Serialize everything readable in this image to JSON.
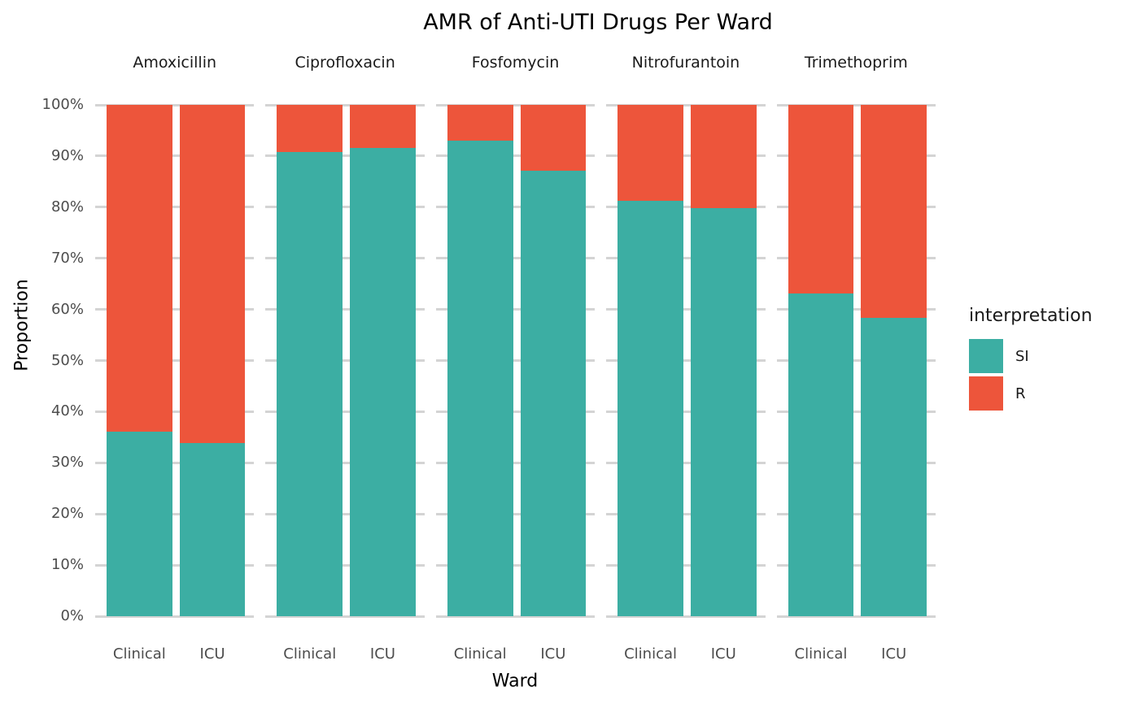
{
  "chart_data": {
    "type": "bar",
    "stacked": true,
    "title": "AMR of Anti-UTI Drugs Per Ward",
    "xlabel": "Ward",
    "ylabel": "Proportion",
    "ylim": [
      0,
      100
    ],
    "y_ticks": [
      0,
      10,
      20,
      30,
      40,
      50,
      60,
      70,
      80,
      90,
      100
    ],
    "y_tick_format": "percent",
    "grid": true,
    "legend_position": "right",
    "categories": [
      "Clinical",
      "ICU"
    ],
    "series": [
      {
        "name": "SI",
        "color": "#3CAEA3"
      },
      {
        "name": "R",
        "color": "#ED553B"
      }
    ],
    "facets": [
      {
        "label": "Amoxicillin",
        "bars": [
          {
            "category": "Clinical",
            "SI": 36.1,
            "R": 63.9
          },
          {
            "category": "ICU",
            "SI": 33.8,
            "R": 66.2
          }
        ]
      },
      {
        "label": "Ciprofloxacin",
        "bars": [
          {
            "category": "Clinical",
            "SI": 90.8,
            "R": 9.2
          },
          {
            "category": "ICU",
            "SI": 91.5,
            "R": 8.5
          }
        ]
      },
      {
        "label": "Fosfomycin",
        "bars": [
          {
            "category": "Clinical",
            "SI": 93.0,
            "R": 7.0
          },
          {
            "category": "ICU",
            "SI": 87.2,
            "R": 12.8
          }
        ]
      },
      {
        "label": "Nitrofurantoin",
        "bars": [
          {
            "category": "Clinical",
            "SI": 81.2,
            "R": 18.8
          },
          {
            "category": "ICU",
            "SI": 79.8,
            "R": 20.2
          }
        ]
      },
      {
        "label": "Trimethoprim",
        "bars": [
          {
            "category": "Clinical",
            "SI": 63.1,
            "R": 36.9
          },
          {
            "category": "ICU",
            "SI": 58.4,
            "R": 41.6
          }
        ]
      }
    ]
  },
  "legend": {
    "title": "interpretation",
    "items": [
      {
        "label": "SI",
        "color": "#3CAEA3"
      },
      {
        "label": "R",
        "color": "#ED553B"
      }
    ]
  }
}
